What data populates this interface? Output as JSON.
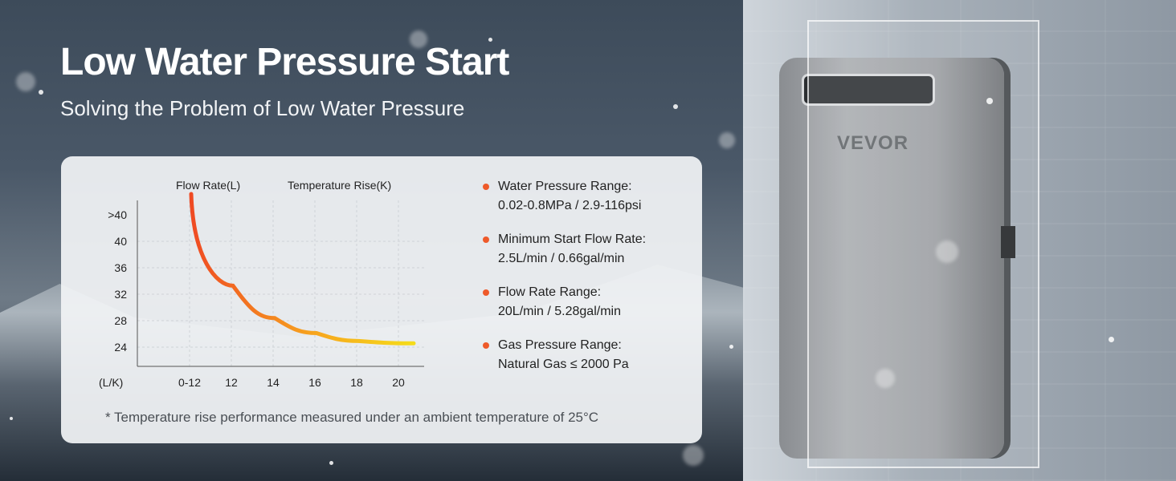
{
  "headline": "Low Water Pressure Start",
  "subheadline": "Solving the Problem of Low Water Pressure",
  "chart_data": {
    "type": "line",
    "series_labels_shown": [
      "Flow Rate(L)",
      "Temperature Rise(K)"
    ],
    "y_unit_label": "(L/K)",
    "y_ticks": [
      ">40",
      "40",
      "36",
      "32",
      "28",
      "24"
    ],
    "x_ticks": [
      "0-12",
      "12",
      "14",
      "16",
      "18",
      "20"
    ],
    "x": [
      0,
      1,
      2,
      3,
      4,
      5
    ],
    "y": [
      44,
      32.4,
      28.3,
      26.4,
      25.4,
      25.1
    ],
    "ylim": [
      23,
      44
    ],
    "grid": true,
    "line_colors": [
      "#ef4a23",
      "#f7a51e",
      "#f5dc1a"
    ]
  },
  "specs": [
    {
      "label": "Water Pressure Range:",
      "value": "0.02-0.8MPa / 2.9-116psi"
    },
    {
      "label": "Minimum Start Flow Rate:",
      "value": "2.5L/min / 0.66gal/min"
    },
    {
      "label": "Flow Rate Range:",
      "value": "20L/min / 5.28gal/min"
    },
    {
      "label": "Gas Pressure Range:",
      "value": "Natural Gas ≤ 2000 Pa"
    }
  ],
  "footnote": "* Temperature rise performance measured under an ambient temperature of 25°C",
  "product": {
    "brand": "VEVOR"
  },
  "colors": {
    "bullet": "#ee5a2a",
    "headline": "#ffffff"
  }
}
